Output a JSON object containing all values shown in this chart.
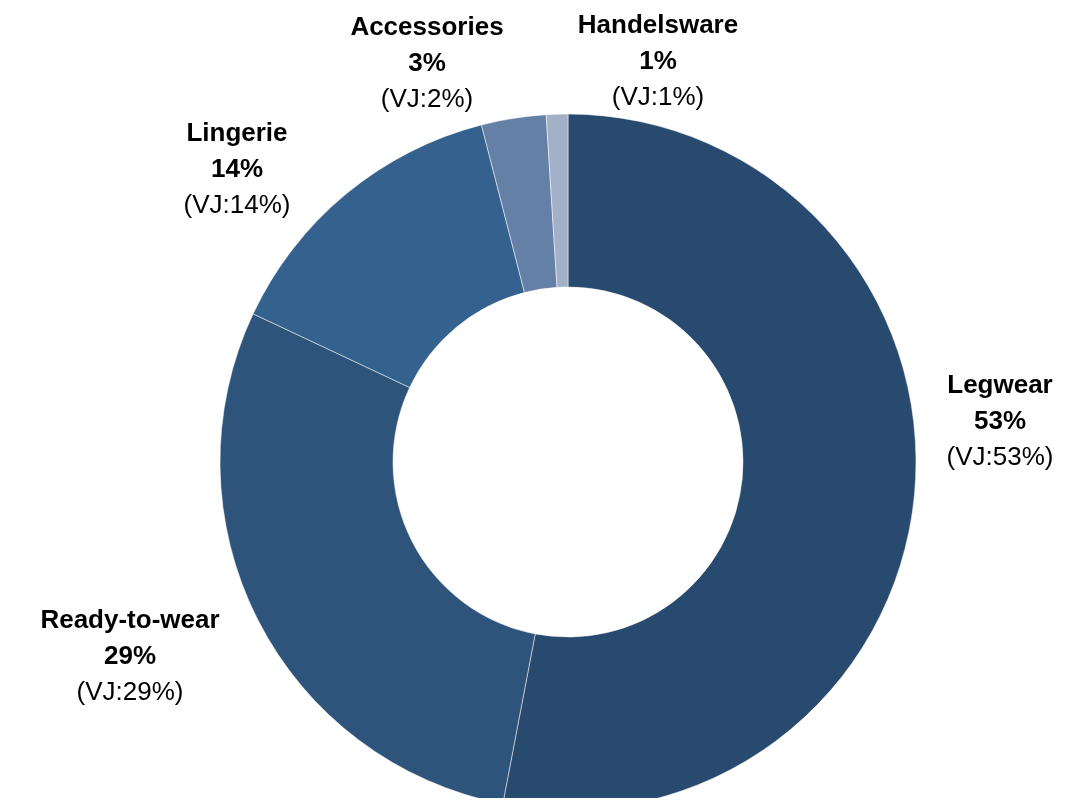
{
  "chart_data": {
    "type": "donut",
    "categories": [
      "Legwear",
      "Ready-to-wear",
      "Lingerie",
      "Accessories",
      "Handelsware"
    ],
    "values": [
      53,
      29,
      14,
      3,
      1
    ],
    "colors": [
      "#284a6e",
      "#2f547b",
      "#35618e",
      "#6580a6",
      "#a2b0c8"
    ],
    "value_labels": [
      "53%",
      "29%",
      "14%",
      "3%",
      "1%"
    ],
    "annotations": [
      {
        "text": "(VJ:53%)",
        "x": "Legwear"
      },
      {
        "text": "(VJ:29%)",
        "x": "Ready-to-wear"
      },
      {
        "text": "(VJ:14%)",
        "x": "Lingerie"
      },
      {
        "text": "(VJ:2%)",
        "x": "Accessories"
      },
      {
        "text": "(VJ:1%)",
        "x": "Handelsware"
      }
    ]
  }
}
